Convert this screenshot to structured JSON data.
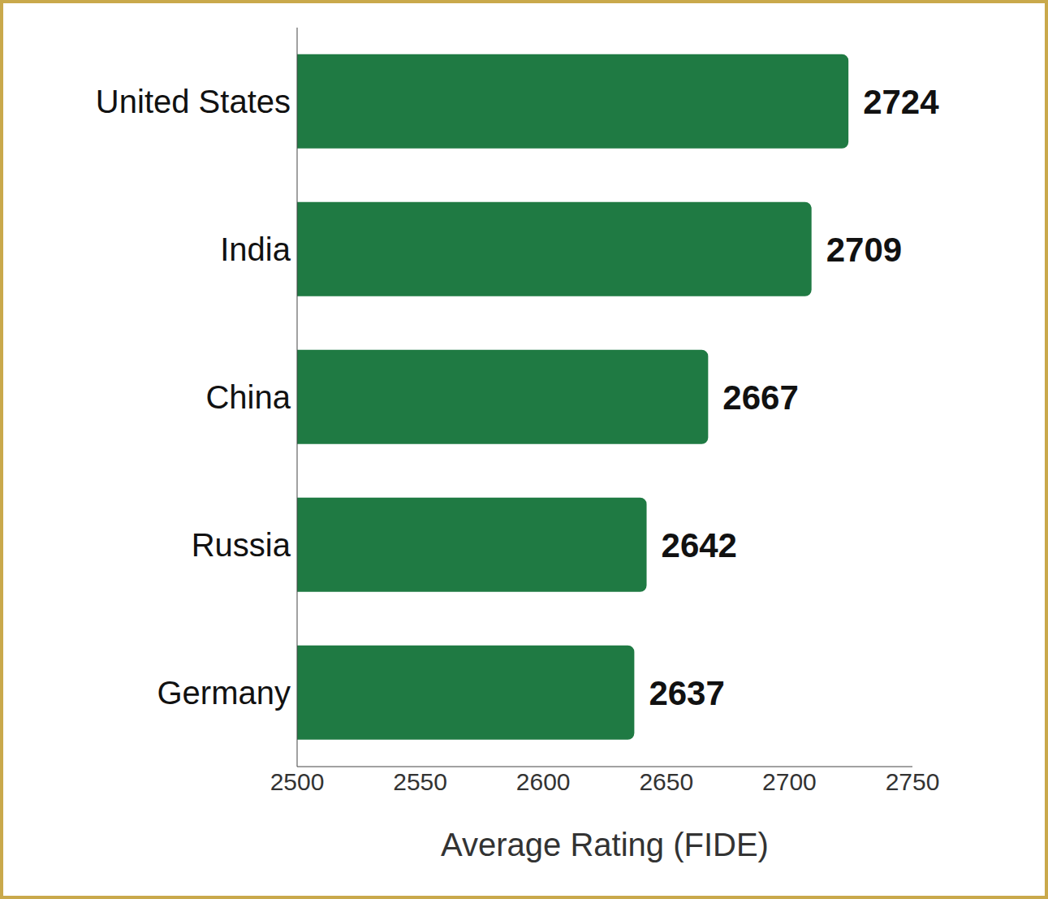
{
  "chart_data": {
    "type": "bar",
    "orientation": "horizontal",
    "x_label": "Average Rating (FIDE)",
    "categories": [
      "United States",
      "India",
      "China",
      "Russia",
      "Germany"
    ],
    "values": [
      2724,
      2709,
      2667,
      2642,
      2637
    ],
    "color": "#1f7a43",
    "xlim": [
      2500,
      2750
    ],
    "xticks": [
      2500,
      2550,
      2600,
      2650,
      2700,
      2750
    ],
    "grid": false,
    "data_labels": true
  }
}
